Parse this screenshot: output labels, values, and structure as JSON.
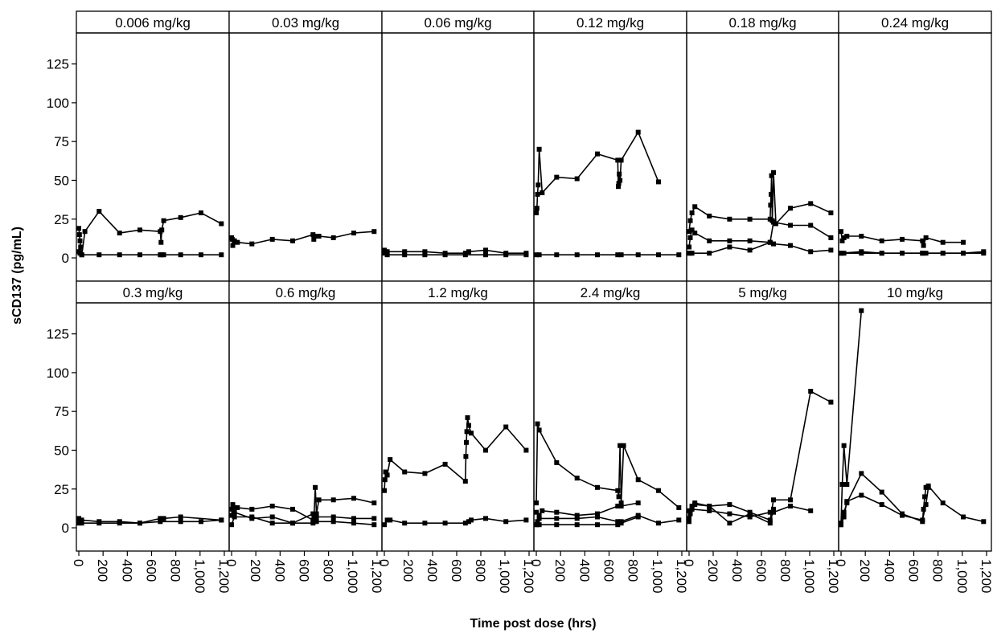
{
  "chart_data": {
    "type": "line",
    "ylabel": "sCD137 (pg/mL)",
    "xlabel": "Time post dose (hrs)",
    "xlim": [
      -20,
      1240
    ],
    "ylim": [
      -15,
      145
    ],
    "xticks": [
      0,
      200,
      400,
      600,
      800,
      1000,
      1200
    ],
    "xtick_labels": [
      "0",
      "200",
      "400",
      "600",
      "800",
      "1,000",
      "1,200"
    ],
    "yticks": [
      0,
      25,
      50,
      75,
      100,
      125
    ],
    "ytick_labels": [
      "0",
      "25",
      "50",
      "75",
      "100",
      "125"
    ],
    "grid": false,
    "marker": "square",
    "panels": [
      {
        "title": "0.006 mg/kg",
        "series": [
          {
            "x": [
              0,
              5,
              10,
              15,
              25,
              50,
              168,
              336,
              504,
              672,
              678,
              684,
              700,
              840,
              1008,
              1176
            ],
            "y": [
              19,
              15,
              11,
              7,
              2,
              17,
              30,
              16,
              18,
              17,
              10,
              18,
              24,
              26,
              29,
              22
            ]
          },
          {
            "x": [
              0,
              10,
              24,
              168,
              336,
              504,
              672,
              684,
              700,
              840,
              1008,
              1176
            ],
            "y": [
              4,
              3,
              2,
              2,
              2,
              2,
              2,
              2,
              2,
              2,
              2,
              2
            ]
          }
        ]
      },
      {
        "title": "0.03 mg/kg",
        "series": [
          {
            "x": [
              0,
              5,
              10,
              24,
              48,
              168,
              336,
              504,
              672,
              678,
              690,
              720,
              840,
              1008,
              1176
            ],
            "y": [
              13,
              12,
              8,
              11,
              10,
              9,
              12,
              11,
              15,
              12,
              14,
              14,
              13,
              16,
              17
            ]
          }
        ]
      },
      {
        "title": "0.06 mg/kg",
        "series": [
          {
            "x": [
              0,
              10,
              24,
              168,
              336,
              504,
              672,
              700,
              840,
              1008,
              1176
            ],
            "y": [
              5,
              4,
              4,
              4,
              4,
              3,
              3,
              4,
              5,
              3,
              3
            ]
          },
          {
            "x": [
              0,
              24,
              168,
              336,
              504,
              672,
              840,
              1008,
              1176
            ],
            "y": [
              3,
              2,
              2,
              2,
              2,
              2,
              2,
              2,
              2
            ]
          }
        ]
      },
      {
        "title": "0.12 mg/kg",
        "series": [
          {
            "x": [
              0,
              5,
              10,
              15,
              24,
              48,
              168,
              336,
              504,
              672,
              676,
              680,
              684,
              690,
              700,
              840,
              1008
            ],
            "y": [
              29,
              32,
              41,
              47,
              70,
              42,
              52,
              51,
              67,
              63,
              46,
              48,
              54,
              50,
              63,
              81,
              49
            ]
          },
          {
            "x": [
              0,
              24,
              168,
              336,
              504,
              672,
              700,
              840,
              1008,
              1176
            ],
            "y": [
              2,
              2,
              2,
              2,
              2,
              2,
              2,
              2,
              2,
              2
            ]
          }
        ]
      },
      {
        "title": "0.18 mg/kg",
        "series": [
          {
            "x": [
              0,
              10,
              24,
              48,
              168,
              336,
              504,
              672,
              676,
              680,
              684,
              690,
              700,
              720,
              840,
              1008,
              1176
            ],
            "y": [
              17,
              24,
              29,
              33,
              27,
              25,
              25,
              25,
              34,
              41,
              53,
              24,
              55,
              22,
              32,
              35,
              29
            ]
          },
          {
            "x": [
              0,
              10,
              24,
              48,
              168,
              336,
              504,
              672,
              700,
              840,
              1008,
              1176
            ],
            "y": [
              7,
              13,
              18,
              16,
              11,
              11,
              11,
              10,
              23,
              21,
              21,
              13
            ]
          },
          {
            "x": [
              0,
              10,
              24,
              168,
              336,
              504,
              672,
              700,
              840,
              1008,
              1176
            ],
            "y": [
              3,
              3,
              3,
              3,
              7,
              5,
              10,
              9,
              8,
              4,
              5
            ]
          }
        ]
      },
      {
        "title": "0.24 mg/kg",
        "series": [
          {
            "x": [
              0,
              10,
              24,
              48,
              168,
              336,
              504,
              672,
              680,
              700,
              840,
              1008
            ],
            "y": [
              17,
              11,
              13,
              14,
              14,
              11,
              12,
              11,
              8,
              13,
              10,
              10
            ]
          },
          {
            "x": [
              0,
              24,
              168,
              336,
              504,
              672,
              700,
              840,
              1008,
              1176
            ],
            "y": [
              3,
              3,
              3,
              3,
              3,
              3,
              3,
              3,
              3,
              4
            ]
          },
          {
            "x": [
              0,
              168,
              336,
              504,
              672,
              840,
              1008,
              1176
            ],
            "y": [
              3,
              4,
              3,
              3,
              3,
              3,
              3,
              3
            ]
          }
        ]
      },
      {
        "title": "0.3 mg/kg",
        "series": [
          {
            "x": [
              0,
              10,
              24,
              168,
              336,
              504,
              672,
              700,
              840,
              1176
            ],
            "y": [
              6,
              5,
              5,
              4,
              4,
              3,
              6,
              6,
              7,
              5
            ]
          },
          {
            "x": [
              0,
              24,
              168,
              336,
              504,
              672,
              840,
              1008,
              1176
            ],
            "y": [
              3,
              3,
              3,
              3,
              3,
              4,
              4,
              4,
              5
            ]
          }
        ]
      },
      {
        "title": "0.6 mg/kg",
        "series": [
          {
            "x": [
              0,
              10,
              24,
              48,
              168,
              336,
              504,
              672,
              680,
              690,
              700,
              720,
              840,
              1008,
              1176
            ],
            "y": [
              8,
              15,
              13,
              13,
              12,
              14,
              12,
              5,
              8,
              26,
              9,
              18,
              18,
              19,
              16
            ]
          },
          {
            "x": [
              0,
              24,
              168,
              336,
              504,
              672,
              700,
              840,
              1008,
              1176
            ],
            "y": [
              12,
              10,
              6,
              7,
              3,
              9,
              7,
              7,
              6,
              6
            ]
          },
          {
            "x": [
              0,
              24,
              168,
              336,
              504,
              672,
              700,
              840,
              1008,
              1176
            ],
            "y": [
              2,
              7,
              7,
              3,
              3,
              3,
              4,
              4,
              3,
              2
            ]
          }
        ]
      },
      {
        "title": "1.2 mg/kg",
        "series": [
          {
            "x": [
              0,
              5,
              10,
              24,
              48,
              168,
              336,
              504,
              672,
              676,
              680,
              684,
              690,
              700,
              720,
              840,
              1008,
              1176
            ],
            "y": [
              24,
              31,
              36,
              34,
              44,
              36,
              35,
              41,
              30,
              46,
              55,
              62,
              71,
              66,
              61,
              50,
              65,
              50
            ]
          },
          {
            "x": [
              0,
              24,
              48,
              168,
              336,
              504,
              672,
              700,
              720,
              840,
              1008,
              1176
            ],
            "y": [
              2,
              5,
              5,
              3,
              3,
              3,
              3,
              4,
              5,
              6,
              4,
              5
            ]
          }
        ]
      },
      {
        "title": "2.4 mg/kg",
        "series": [
          {
            "x": [
              0,
              10,
              24,
              168,
              336,
              504,
              672,
              680,
              690,
              700,
              720,
              840,
              1008,
              1176
            ],
            "y": [
              16,
              67,
              63,
              42,
              32,
              26,
              24,
              20,
              53,
              16,
              53,
              31,
              24,
              13
            ]
          },
          {
            "x": [
              0,
              24,
              48,
              168,
              336,
              504,
              672,
              700,
              840
            ],
            "y": [
              10,
              8,
              11,
              10,
              8,
              9,
              14,
              14,
              16
            ]
          },
          {
            "x": [
              0,
              10,
              24,
              168,
              336,
              504,
              672,
              700,
              840,
              1008,
              1176
            ],
            "y": [
              2,
              4,
              6,
              6,
              6,
              7,
              4,
              4,
              8,
              3,
              5
            ]
          },
          {
            "x": [
              0,
              24,
              168,
              336,
              504,
              672,
              700,
              840
            ],
            "y": [
              2,
              2,
              2,
              2,
              2,
              2,
              3,
              7
            ]
          }
        ]
      },
      {
        "title": "5 mg/kg",
        "series": [
          {
            "x": [
              0,
              10,
              24,
              48,
              168,
              336,
              504,
              672,
              700,
              840,
              1008,
              1176
            ],
            "y": [
              4,
              9,
              13,
              16,
              14,
              15,
              10,
              5,
              18,
              18,
              88,
              81
            ]
          },
          {
            "x": [
              0,
              10,
              24,
              168,
              336,
              504,
              672,
              700,
              840,
              1008
            ],
            "y": [
              6,
              10,
              12,
              11,
              9,
              7,
              10,
              10,
              14,
              11
            ]
          },
          {
            "x": [
              0,
              24,
              48,
              168,
              336,
              504,
              672,
              700
            ],
            "y": [
              11,
              14,
              15,
              14,
              3,
              9,
              3,
              12
            ]
          }
        ]
      },
      {
        "title": "10 mg/kg",
        "series": [
          {
            "x": [
              0,
              10,
              24,
              48,
              168
            ],
            "y": [
              3,
              28,
              53,
              28,
              140
            ]
          },
          {
            "x": [
              0,
              24,
              48,
              168,
              336,
              504,
              672,
              680,
              690,
              700,
              720,
              840,
              1008,
              1176
            ],
            "y": [
              2,
              10,
              16,
              35,
              23,
              9,
              4,
              12,
              20,
              26,
              27,
              16,
              7,
              4
            ]
          },
          {
            "x": [
              0,
              24,
              48,
              168,
              336,
              504,
              672,
              700,
              720
            ],
            "y": [
              2,
              7,
              17,
              21,
              15,
              8,
              5,
              15,
              26
            ]
          }
        ]
      }
    ]
  }
}
